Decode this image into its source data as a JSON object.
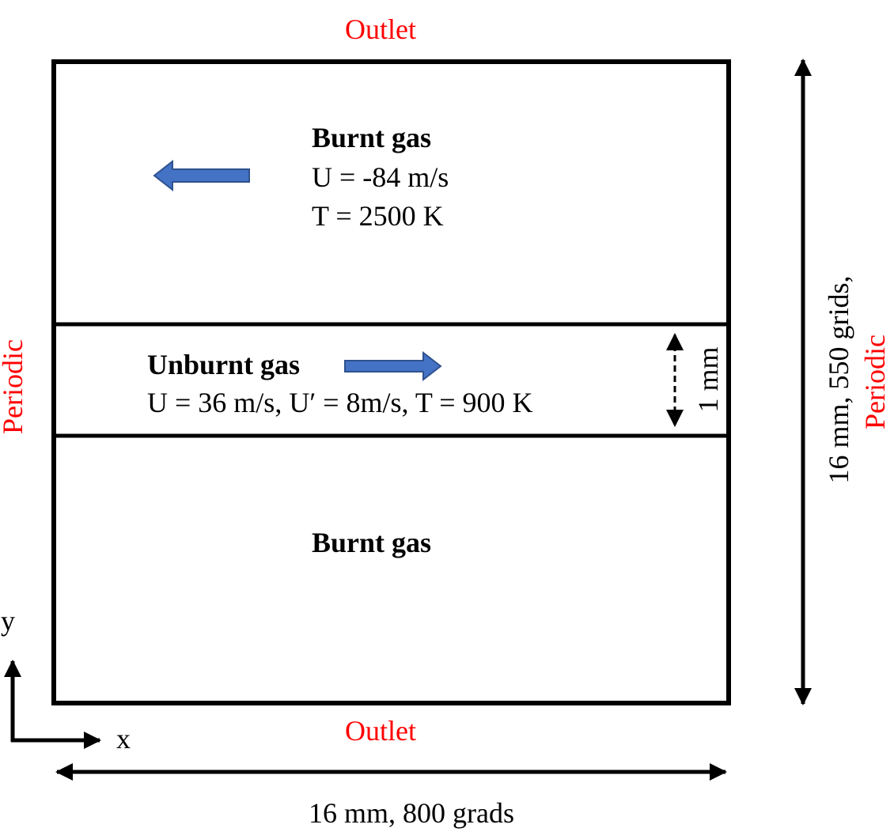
{
  "boundaries": {
    "top": "Outlet",
    "bottom": "Outlet",
    "left": "Periodic",
    "right": "Periodic"
  },
  "regions": {
    "upper": {
      "title": "Burnt gas",
      "velocity": "U = -84 m/s",
      "temperature": "T = 2500 K"
    },
    "middle": {
      "title": "Unburnt gas",
      "conditions": "U = 36 m/s, U′ = 8m/s, T = 900 K",
      "thickness": "1 mm"
    },
    "lower": {
      "title": "Burnt gas"
    }
  },
  "dimensions": {
    "width": "16 mm, 800 grads",
    "height": "16 mm, 550 grids,"
  },
  "axes": {
    "x": "x",
    "y": "y"
  },
  "colors": {
    "boundary_text": "#ff0000",
    "flow_arrow_fill": "#4472c4",
    "flow_arrow_stroke": "#2f528f",
    "lines": "#000000"
  }
}
